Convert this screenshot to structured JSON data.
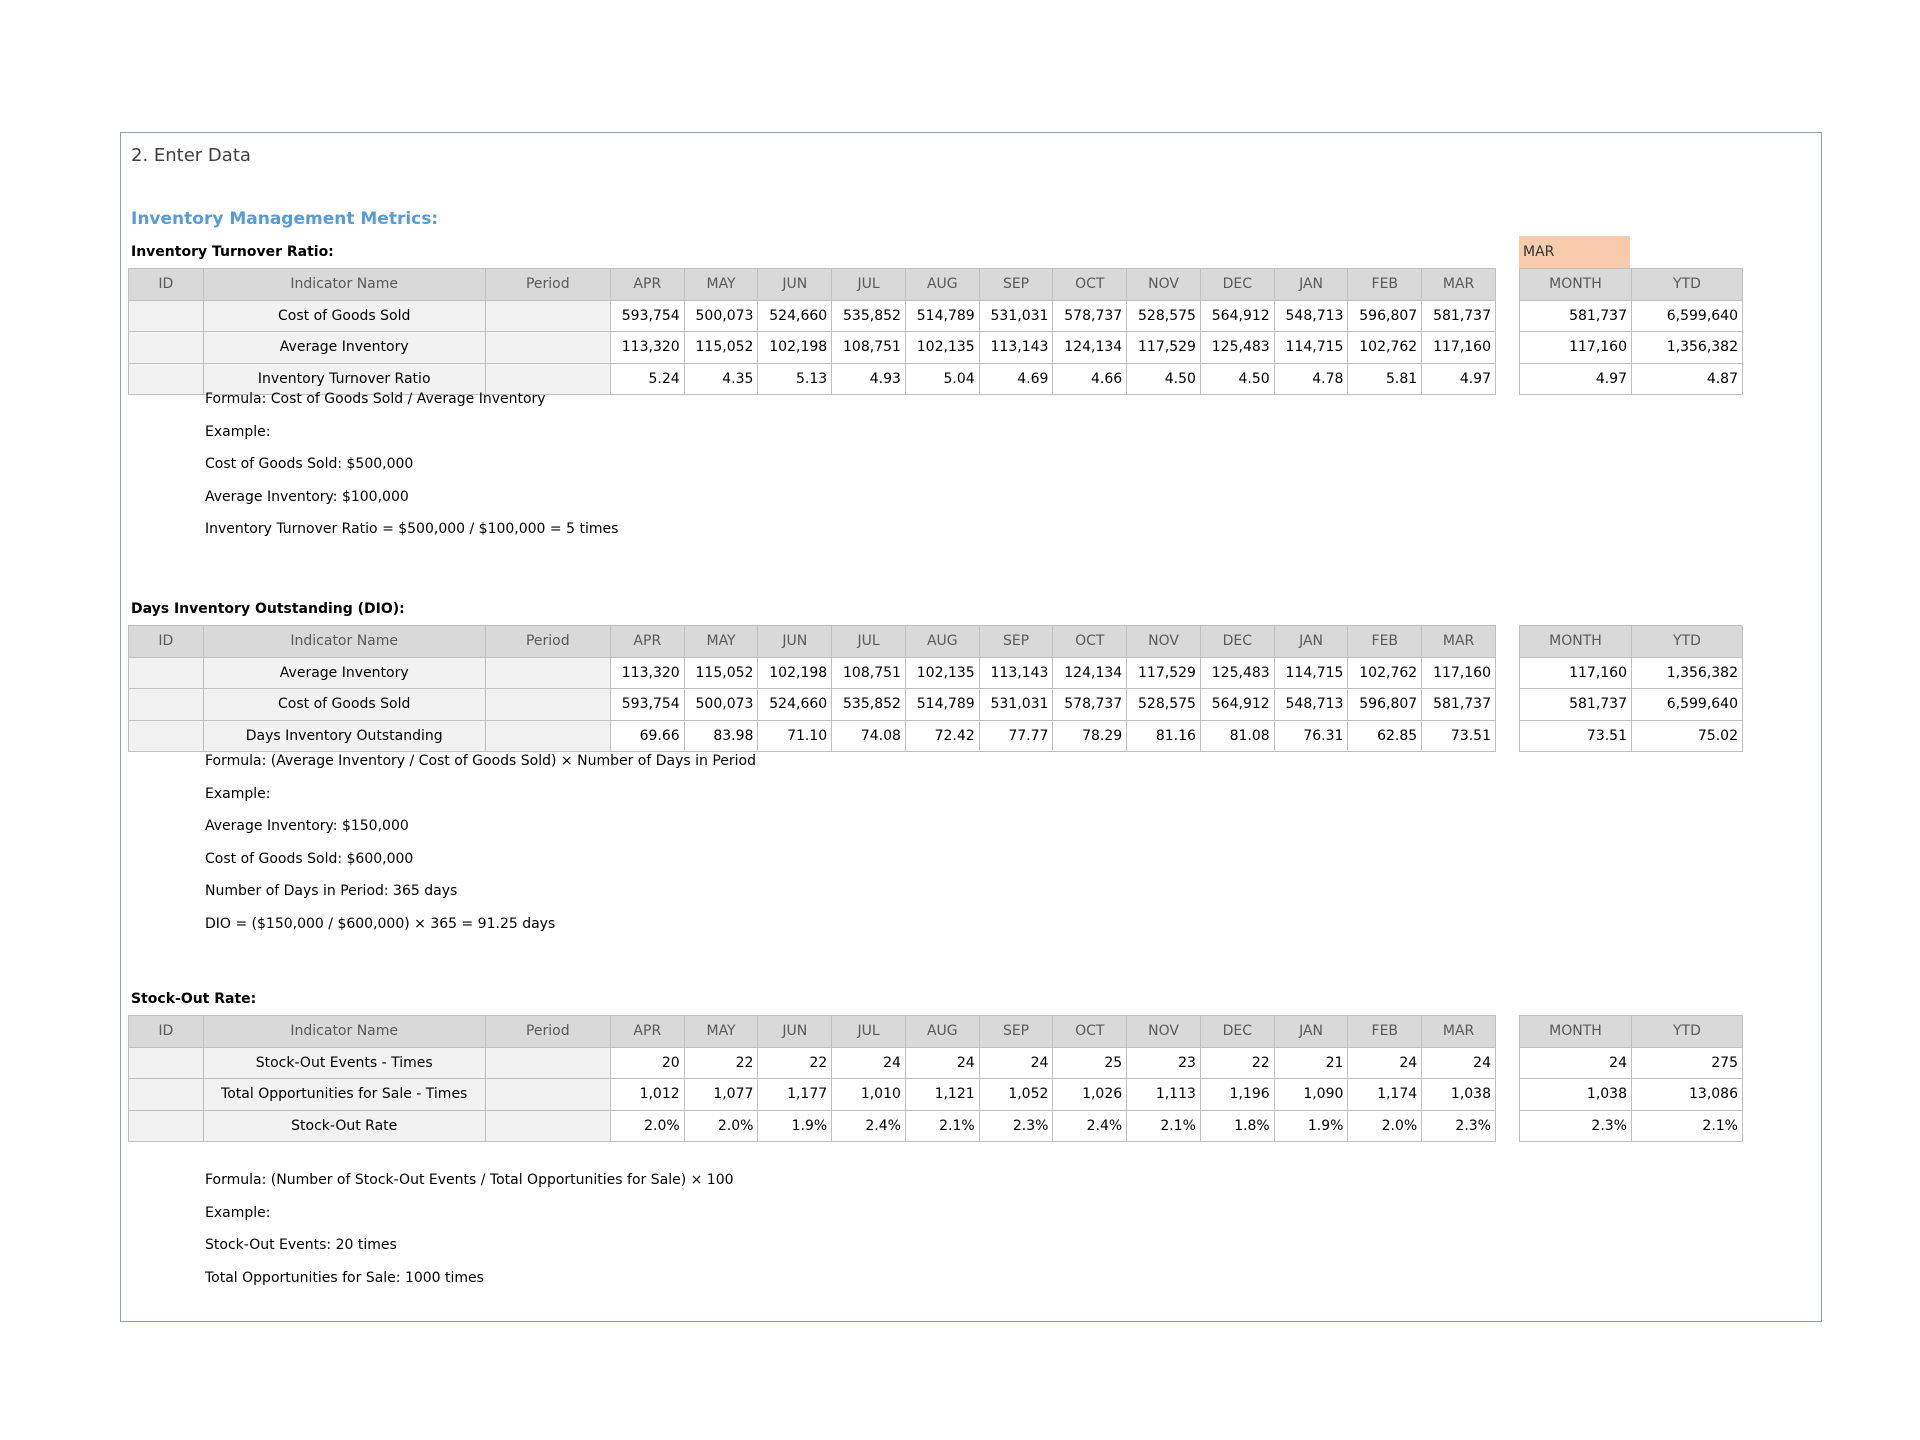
{
  "heading": "2. Enter Data",
  "subheading": "Inventory Management Metrics:",
  "selected_month": "MAR",
  "columns": {
    "id": "ID",
    "name": "Indicator Name",
    "period": "Period",
    "months": [
      "APR",
      "MAY",
      "JUN",
      "JUL",
      "AUG",
      "SEP",
      "OCT",
      "NOV",
      "DEC",
      "JAN",
      "FEB",
      "MAR"
    ],
    "summary": [
      "MONTH",
      "YTD"
    ]
  },
  "sections": [
    {
      "label": "Inventory Turnover Ratio:",
      "rows": [
        {
          "name": "Cost of Goods Sold",
          "values": [
            "593,754",
            "500,073",
            "524,660",
            "535,852",
            "514,789",
            "531,031",
            "578,737",
            "528,575",
            "564,912",
            "548,713",
            "596,807",
            "581,737"
          ],
          "month": "581,737",
          "ytd": "6,599,640"
        },
        {
          "name": "Average Inventory",
          "values": [
            "113,320",
            "115,052",
            "102,198",
            "108,751",
            "102,135",
            "113,143",
            "124,134",
            "117,529",
            "125,483",
            "114,715",
            "102,762",
            "117,160"
          ],
          "month": "117,160",
          "ytd": "1,356,382"
        },
        {
          "name": "Inventory Turnover Ratio",
          "values": [
            "5.24",
            "4.35",
            "5.13",
            "4.93",
            "5.04",
            "4.69",
            "4.66",
            "4.50",
            "4.50",
            "4.78",
            "5.81",
            "4.97"
          ],
          "month": "4.97",
          "ytd": "4.87"
        }
      ],
      "notes": [
        "Formula: Cost of Goods Sold / Average Inventory",
        "Example:",
        "Cost of Goods Sold: $500,000",
        "Average Inventory: $100,000",
        "Inventory Turnover Ratio = $500,000 / $100,000 = 5 times"
      ]
    },
    {
      "label": "Days Inventory Outstanding (DIO):",
      "rows": [
        {
          "name": "Average Inventory",
          "values": [
            "113,320",
            "115,052",
            "102,198",
            "108,751",
            "102,135",
            "113,143",
            "124,134",
            "117,529",
            "125,483",
            "114,715",
            "102,762",
            "117,160"
          ],
          "month": "117,160",
          "ytd": "1,356,382"
        },
        {
          "name": "Cost of Goods Sold",
          "values": [
            "593,754",
            "500,073",
            "524,660",
            "535,852",
            "514,789",
            "531,031",
            "578,737",
            "528,575",
            "564,912",
            "548,713",
            "596,807",
            "581,737"
          ],
          "month": "581,737",
          "ytd": "6,599,640"
        },
        {
          "name": "Days Inventory Outstanding",
          "values": [
            "69.66",
            "83.98",
            "71.10",
            "74.08",
            "72.42",
            "77.77",
            "78.29",
            "81.16",
            "81.08",
            "76.31",
            "62.85",
            "73.51"
          ],
          "month": "73.51",
          "ytd": "75.02"
        }
      ],
      "notes": [
        "Formula: (Average Inventory / Cost of Goods Sold) × Number of Days in Period",
        "Example:",
        "Average Inventory: $150,000",
        "Cost of Goods Sold: $600,000",
        "Number of Days in Period: 365 days",
        "DIO = ($150,000 / $600,000) × 365 = 91.25 days"
      ]
    },
    {
      "label": "Stock-Out Rate:",
      "rows": [
        {
          "name": "Stock-Out Events - Times",
          "values": [
            "20",
            "22",
            "22",
            "24",
            "24",
            "24",
            "25",
            "23",
            "22",
            "21",
            "24",
            "24"
          ],
          "month": "24",
          "ytd": "275"
        },
        {
          "name": "Total Opportunities for Sale - Times",
          "values": [
            "1,012",
            "1,077",
            "1,177",
            "1,010",
            "1,121",
            "1,052",
            "1,026",
            "1,113",
            "1,196",
            "1,090",
            "1,174",
            "1,038"
          ],
          "month": "1,038",
          "ytd": "13,086"
        },
        {
          "name": "Stock-Out Rate",
          "values": [
            "2.0%",
            "2.0%",
            "1.9%",
            "2.4%",
            "2.1%",
            "2.3%",
            "2.4%",
            "2.1%",
            "1.8%",
            "1.9%",
            "2.0%",
            "2.3%"
          ],
          "month": "2.3%",
          "ytd": "2.1%"
        }
      ],
      "notes": [
        "Formula: (Number of Stock-Out Events / Total Opportunities for Sale) × 100",
        "Example:",
        "Stock-Out Events: 20 times",
        "Total Opportunities for Sale: 1000 times"
      ]
    }
  ]
}
